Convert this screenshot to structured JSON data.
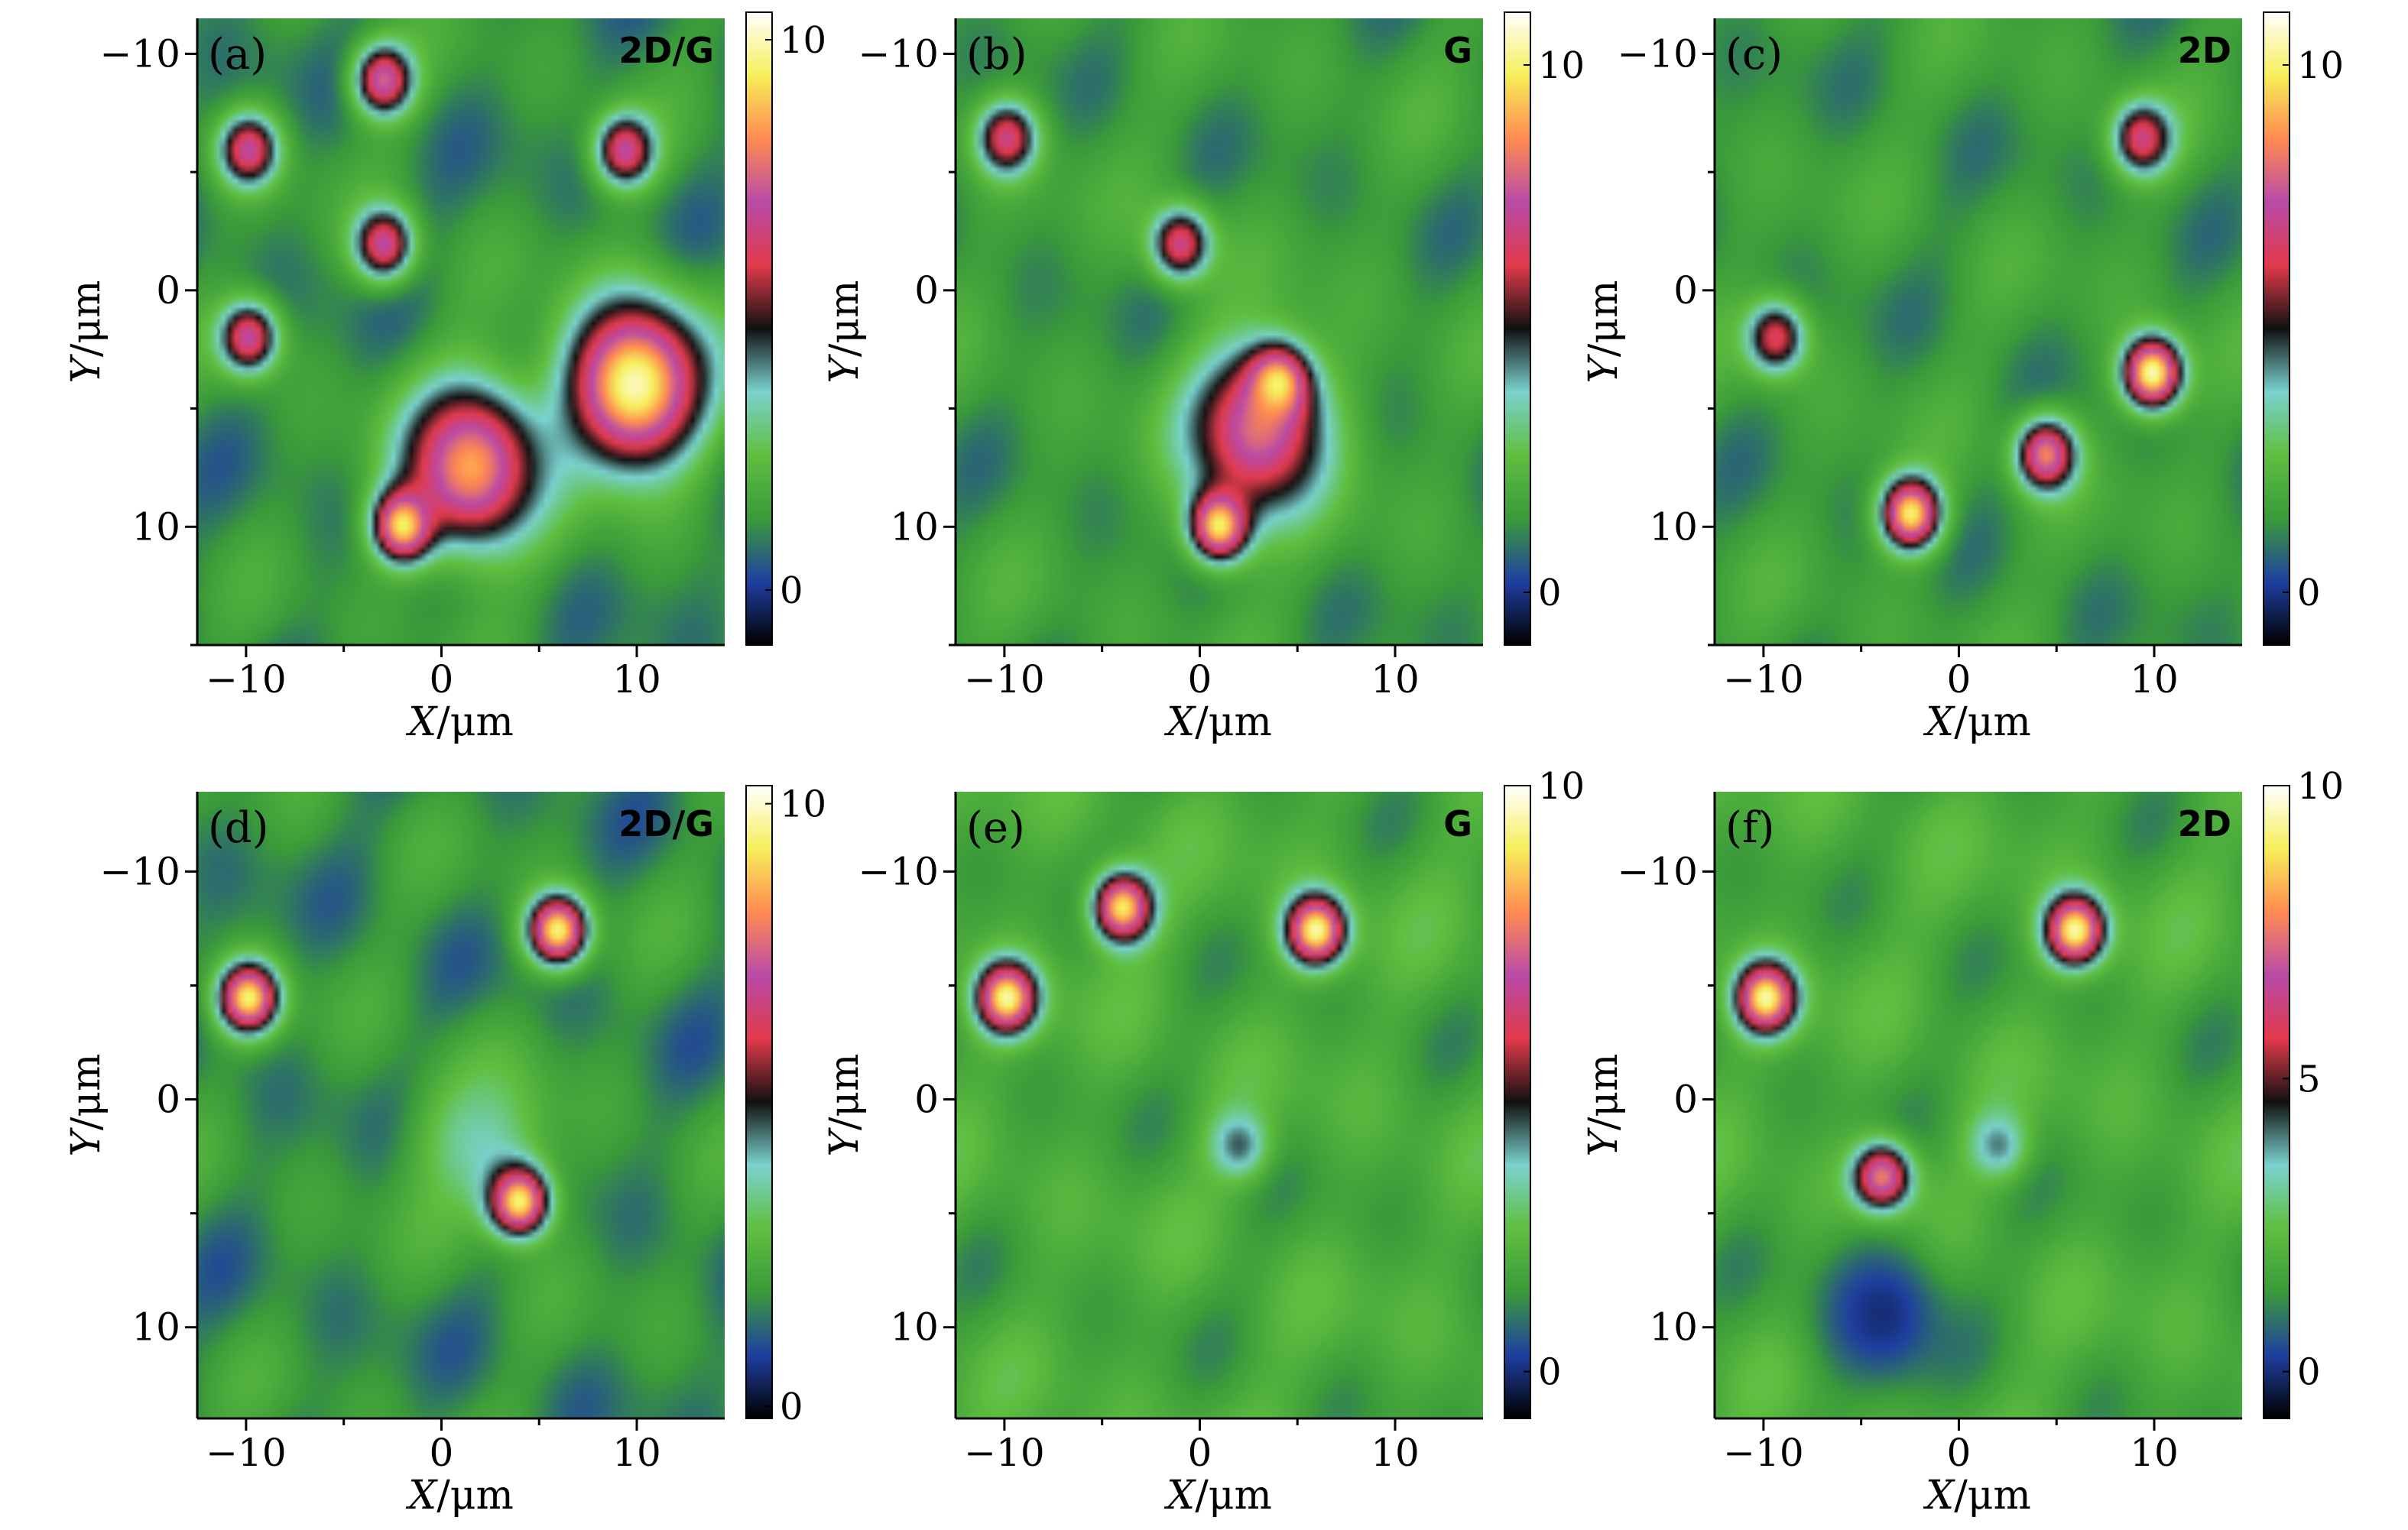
{
  "figure": {
    "panels": [
      {
        "letter": "(a)",
        "tag": "2D/G",
        "xlabel_var": "X",
        "xlabel_unit": "/μm",
        "ylabel_var": "Y",
        "ylabel_unit": "/μm",
        "xticks": [
          "−10",
          "0",
          "10"
        ],
        "yticks": [
          "−10",
          "0",
          "10"
        ],
        "colorbar_ticks": [
          "10",
          "0"
        ],
        "colorbar_tick_values": [
          10,
          0
        ]
      },
      {
        "letter": "(b)",
        "tag": "G",
        "xlabel_var": "X",
        "xlabel_unit": "/μm",
        "ylabel_var": "Y",
        "ylabel_unit": "/μm",
        "xticks": [
          "−10",
          "0",
          "10"
        ],
        "yticks": [
          "−10",
          "0",
          "10"
        ],
        "colorbar_ticks": [
          "10",
          "0"
        ],
        "colorbar_tick_values": [
          10,
          0
        ]
      },
      {
        "letter": "(c)",
        "tag": "2D",
        "xlabel_var": "X",
        "xlabel_unit": "/μm",
        "ylabel_var": "Y",
        "ylabel_unit": "/μm",
        "xticks": [
          "−10",
          "0",
          "10"
        ],
        "yticks": [
          "−10",
          "0",
          "10"
        ],
        "colorbar_ticks": [
          "10",
          "0"
        ],
        "colorbar_tick_values": [
          10,
          0
        ]
      },
      {
        "letter": "(d)",
        "tag": "2D/G",
        "xlabel_var": "X",
        "xlabel_unit": "/μm",
        "ylabel_var": "Y",
        "ylabel_unit": "/μm",
        "xticks": [
          "−10",
          "0",
          "10"
        ],
        "yticks": [
          "−10",
          "0",
          "10"
        ],
        "colorbar_ticks": [
          "10",
          "0"
        ],
        "colorbar_tick_values": [
          10,
          0
        ]
      },
      {
        "letter": "(e)",
        "tag": "G",
        "xlabel_var": "X",
        "xlabel_unit": "/μm",
        "ylabel_var": "Y",
        "ylabel_unit": "/μm",
        "xticks": [
          "−10",
          "0",
          "10"
        ],
        "yticks": [
          "−10",
          "0",
          "10"
        ],
        "colorbar_ticks": [
          "10",
          "0"
        ],
        "colorbar_tick_values": [
          10,
          0
        ]
      },
      {
        "letter": "(f)",
        "tag": "2D",
        "xlabel_var": "X",
        "xlabel_unit": "/μm",
        "ylabel_var": "Y",
        "ylabel_unit": "/μm",
        "xticks": [
          "−10",
          "0",
          "10"
        ],
        "yticks": [
          "−10",
          "0",
          "10"
        ],
        "colorbar_ticks": [
          "10",
          "5",
          "0"
        ],
        "colorbar_tick_values": [
          10,
          5,
          0
        ]
      }
    ]
  },
  "chart_data": [
    {
      "type": "heatmap",
      "panel": "(a)",
      "quantity": "2D/G",
      "xlim": [
        -12.5,
        14.5
      ],
      "ylim": [
        -11.5,
        15
      ],
      "colorbar_range": [
        -1,
        10.5
      ],
      "colorscale": [
        "#000000",
        "#1f3fa0",
        "#3a9a3a",
        "#5fbf3f",
        "#7ad2cf",
        "#111111",
        "#e23a4a",
        "#b84aa8",
        "#ff8a50",
        "#f6ef5a",
        "#ffffff"
      ],
      "base_value": 1.2,
      "features": [
        {
          "x": 1.5,
          "y": 7.5,
          "value": 8.5,
          "note": "bright central body"
        },
        {
          "x": 10,
          "y": 4,
          "value": 10,
          "note": "bright arm"
        },
        {
          "x": -2,
          "y": 10,
          "value": 9.5
        },
        {
          "x": -10,
          "y": -6,
          "value": 7
        },
        {
          "x": 9.5,
          "y": -6,
          "value": 7
        },
        {
          "x": -3,
          "y": -9,
          "value": 7.5
        },
        {
          "x": -3,
          "y": -2,
          "value": 7
        },
        {
          "x": -10,
          "y": 2,
          "value": 7
        }
      ]
    },
    {
      "type": "heatmap",
      "panel": "(b)",
      "quantity": "G",
      "xlim": [
        -12.5,
        14.5
      ],
      "ylim": [
        -11.5,
        15
      ],
      "colorbar_range": [
        -1,
        11
      ],
      "colorscale": [
        "#000000",
        "#1f3fa0",
        "#3a9a3a",
        "#5fbf3f",
        "#7ad2cf",
        "#111111",
        "#e23a4a",
        "#b84aa8",
        "#ff8a50",
        "#f6ef5a",
        "#ffffff"
      ],
      "base_value": 1.5,
      "features": [
        {
          "x": 3,
          "y": 6,
          "value": 8,
          "note": "large magenta/red region"
        },
        {
          "x": 4,
          "y": 4,
          "value": 10
        },
        {
          "x": 1,
          "y": 10,
          "value": 10
        },
        {
          "x": -10,
          "y": -6.5,
          "value": 7
        },
        {
          "x": -1,
          "y": -2,
          "value": 7
        }
      ]
    },
    {
      "type": "heatmap",
      "panel": "(c)",
      "quantity": "2D",
      "xlim": [
        -12.5,
        14.5
      ],
      "ylim": [
        -11.5,
        15
      ],
      "colorbar_range": [
        -1,
        11
      ],
      "colorscale": [
        "#000000",
        "#1f3fa0",
        "#3a9a3a",
        "#5fbf3f",
        "#7ad2cf",
        "#111111",
        "#e23a4a",
        "#b84aa8",
        "#ff8a50",
        "#f6ef5a",
        "#ffffff"
      ],
      "base_value": 1.5,
      "features": [
        {
          "x": 4.5,
          "y": 7,
          "value": 8.5
        },
        {
          "x": 10,
          "y": 3.5,
          "value": 10.5
        },
        {
          "x": -2.5,
          "y": 9.5,
          "value": 10
        },
        {
          "x": 9.5,
          "y": -6.5,
          "value": 7
        },
        {
          "x": -9.5,
          "y": 2,
          "value": 6.5
        }
      ]
    },
    {
      "type": "heatmap",
      "panel": "(d)",
      "quantity": "2D/G",
      "xlim": [
        -12.5,
        14.5
      ],
      "ylim": [
        -13.5,
        14
      ],
      "colorbar_range": [
        -0.2,
        10.3
      ],
      "colorscale": [
        "#000000",
        "#1f3fa0",
        "#3a9a3a",
        "#5fbf3f",
        "#7ad2cf",
        "#111111",
        "#e23a4a",
        "#b84aa8",
        "#ff8a50",
        "#f6ef5a",
        "#ffffff"
      ],
      "base_value": 1.8,
      "features": [
        {
          "x": 2,
          "y": 2,
          "value": 3.8,
          "note": "cyan central region"
        },
        {
          "x": 6,
          "y": -7.5,
          "value": 9.5
        },
        {
          "x": -10,
          "y": -4.5,
          "value": 9.5
        },
        {
          "x": 4,
          "y": 4.5,
          "value": 9.5
        }
      ]
    },
    {
      "type": "heatmap",
      "panel": "(e)",
      "quantity": "G",
      "xlim": [
        -12.5,
        14.5
      ],
      "ylim": [
        -13.5,
        14
      ],
      "colorbar_range": [
        -0.8,
        10
      ],
      "colorscale": [
        "#000000",
        "#1f3fa0",
        "#3a9a3a",
        "#5fbf3f",
        "#7ad2cf",
        "#111111",
        "#e23a4a",
        "#b84aa8",
        "#ff8a50",
        "#f6ef5a",
        "#ffffff"
      ],
      "base_value": 1.8,
      "features": [
        {
          "x": 2,
          "y": 2,
          "value": 4.2
        },
        {
          "x": 6,
          "y": -7.5,
          "value": 9.5
        },
        {
          "x": -10,
          "y": -4.5,
          "value": 9.5
        },
        {
          "x": -4,
          "y": -8.5,
          "value": 9
        }
      ]
    },
    {
      "type": "heatmap",
      "panel": "(f)",
      "quantity": "2D",
      "xlim": [
        -12.5,
        14.5
      ],
      "ylim": [
        -13.5,
        14
      ],
      "colorbar_range": [
        -0.8,
        10
      ],
      "colorscale": [
        "#000000",
        "#1f3fa0",
        "#3a9a3a",
        "#5fbf3f",
        "#7ad2cf",
        "#111111",
        "#e23a4a",
        "#b84aa8",
        "#ff8a50",
        "#f6ef5a",
        "#ffffff"
      ],
      "base_value": 1.8,
      "features": [
        {
          "x": 2,
          "y": 2,
          "value": 4
        },
        {
          "x": 6,
          "y": -7.5,
          "value": 9.5
        },
        {
          "x": -10,
          "y": -4.5,
          "value": 9.5
        },
        {
          "x": -4,
          "y": 3.5,
          "value": 8
        },
        {
          "x": -4,
          "y": 9.5,
          "value": 0,
          "note": "dark spot"
        }
      ]
    }
  ]
}
